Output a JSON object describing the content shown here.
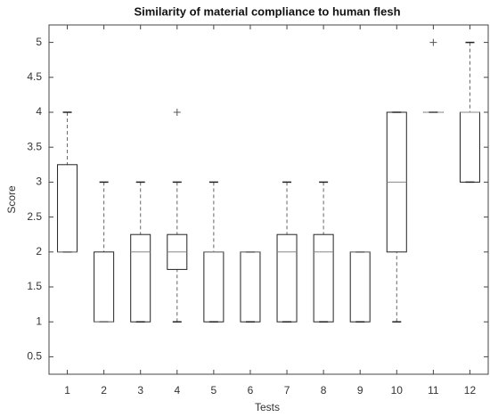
{
  "chart_data": {
    "type": "box",
    "title": "Similarity of material compliance to human flesh",
    "x_label": "Tests",
    "y_label": "Score",
    "categories": [
      "1",
      "2",
      "3",
      "4",
      "5",
      "6",
      "7",
      "8",
      "9",
      "10",
      "11",
      "12"
    ],
    "min": [
      2,
      1,
      1,
      1,
      1,
      1,
      1,
      1,
      1,
      1,
      4,
      3
    ],
    "q1": [
      2,
      1,
      1,
      1.75,
      1,
      1,
      1,
      1,
      1,
      2,
      4,
      3
    ],
    "median": [
      2,
      1,
      2,
      2,
      2,
      2,
      2,
      2,
      2,
      3,
      4,
      4
    ],
    "q3": [
      3.25,
      2,
      2.25,
      2.25,
      2,
      2,
      2.25,
      2.25,
      2,
      4,
      4,
      4
    ],
    "max": [
      4,
      3,
      3,
      3,
      3,
      2,
      3,
      3,
      2,
      4,
      4,
      5
    ],
    "outliers": [
      [],
      [],
      [],
      [
        4
      ],
      [],
      [],
      [],
      [],
      [],
      [],
      [
        5
      ],
      []
    ],
    "color": "#222222",
    "median_color": "#888888",
    "ylim": [
      0.25,
      5.25
    ],
    "yticks": [
      0.5,
      1,
      1.5,
      2,
      2.5,
      3,
      3.5,
      4,
      4.5,
      5
    ]
  }
}
